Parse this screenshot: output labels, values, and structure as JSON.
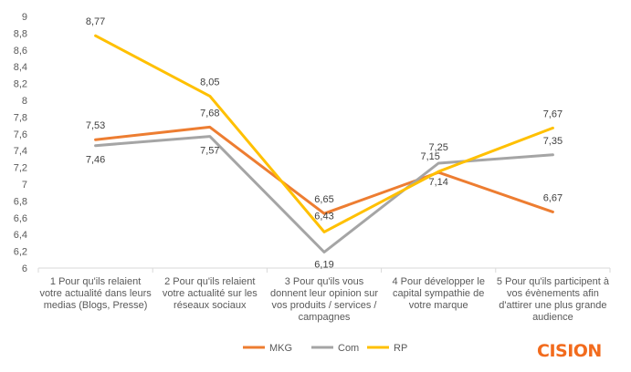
{
  "chart_data": {
    "type": "line",
    "categories": [
      "1 Pour qu'ils relaient votre actualité dans leurs medias (Blogs, Presse)",
      "2 Pour qu'ils relaient votre actualité sur les réseaux sociaux",
      "3 Pour qu'ils vous donnent leur opinion sur vos produits / services / campagnes",
      "4 Pour développer le capital sympathie de votre marque",
      "5 Pour qu'ils participent à vos évènements afin d'attirer une plus grande audience"
    ],
    "category_lines": [
      [
        "1 Pour qu'ils relaient",
        "votre actualité dans leurs",
        "medias (Blogs, Presse)"
      ],
      [
        "2 Pour qu'ils relaient",
        "votre actualité sur les",
        "réseaux sociaux"
      ],
      [
        "3 Pour qu'ils vous",
        "donnent leur opinion sur",
        "vos produits / services /",
        "campagnes"
      ],
      [
        "4 Pour développer le",
        "capital sympathie de",
        "votre marque"
      ],
      [
        "5 Pour qu'ils participent à",
        "vos évènements afin",
        "d'attirer une plus grande",
        "audience"
      ]
    ],
    "series": [
      {
        "name": "MKG",
        "color": "#ed7d31",
        "values": [
          7.53,
          7.68,
          6.65,
          7.14,
          6.67
        ],
        "labels": [
          "7,53",
          "7,68",
          "6,65",
          "7,14",
          "6,67"
        ]
      },
      {
        "name": "Com",
        "color": "#a5a5a5",
        "values": [
          7.46,
          7.57,
          6.19,
          7.25,
          7.35
        ],
        "labels": [
          "7,46",
          "7,57",
          "6,19",
          "7,25",
          "7,35"
        ]
      },
      {
        "name": "RP",
        "color": "#ffc000",
        "values": [
          8.77,
          8.05,
          6.43,
          7.15,
          7.67
        ],
        "labels": [
          "8,77",
          "8,05",
          "6,43",
          "7,15",
          "7,67"
        ]
      }
    ],
    "ylim": [
      6,
      9
    ],
    "yticks": [
      6,
      6.2,
      6.4,
      6.6,
      6.8,
      7,
      7.2,
      7.4,
      7.6,
      7.8,
      8,
      8.2,
      8.4,
      8.6,
      8.8,
      9
    ],
    "ytick_labels": [
      "6",
      "6,2",
      "6,4",
      "6,6",
      "6,8",
      "7",
      "7,2",
      "7,4",
      "7,6",
      "7,8",
      "8",
      "8,2",
      "8,4",
      "8,6",
      "8,8",
      "9"
    ],
    "grid": false,
    "legend": "bottom-center"
  },
  "brand": {
    "logo_text": "CISION"
  }
}
